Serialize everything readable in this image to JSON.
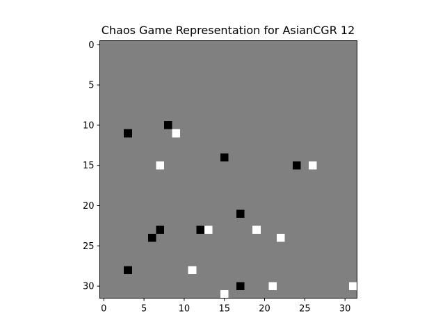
{
  "chart_data": {
    "type": "heatmap",
    "title": "Chaos Game Representation for AsianCGR 12",
    "xlabel": "",
    "ylabel": "",
    "grid_size": 32,
    "xlim": [
      -0.5,
      31.5
    ],
    "ylim": [
      31.5,
      -0.5
    ],
    "y_inverted": true,
    "x_ticks": [
      0,
      5,
      10,
      15,
      20,
      25,
      30
    ],
    "y_ticks": [
      0,
      5,
      10,
      15,
      20,
      25,
      30
    ],
    "grid": false,
    "colormap": "gray",
    "colors": {
      "background": "#808080",
      "low": "#000000",
      "high": "#ffffff"
    },
    "cells": [
      {
        "x": 8,
        "y": 10,
        "value": 0
      },
      {
        "x": 3,
        "y": 11,
        "value": 0
      },
      {
        "x": 9,
        "y": 11,
        "value": 1
      },
      {
        "x": 15,
        "y": 14,
        "value": 0
      },
      {
        "x": 7,
        "y": 15,
        "value": 1
      },
      {
        "x": 24,
        "y": 15,
        "value": 0
      },
      {
        "x": 26,
        "y": 15,
        "value": 1
      },
      {
        "x": 17,
        "y": 21,
        "value": 0
      },
      {
        "x": 7,
        "y": 23,
        "value": 0
      },
      {
        "x": 12,
        "y": 23,
        "value": 0
      },
      {
        "x": 13,
        "y": 23,
        "value": 1
      },
      {
        "x": 19,
        "y": 23,
        "value": 1
      },
      {
        "x": 6,
        "y": 24,
        "value": 0
      },
      {
        "x": 22,
        "y": 24,
        "value": 1
      },
      {
        "x": 3,
        "y": 28,
        "value": 0
      },
      {
        "x": 11,
        "y": 28,
        "value": 1
      },
      {
        "x": 17,
        "y": 30,
        "value": 0
      },
      {
        "x": 21,
        "y": 30,
        "value": 1
      },
      {
        "x": 31,
        "y": 30,
        "value": 1
      },
      {
        "x": 15,
        "y": 31,
        "value": 1
      }
    ]
  }
}
